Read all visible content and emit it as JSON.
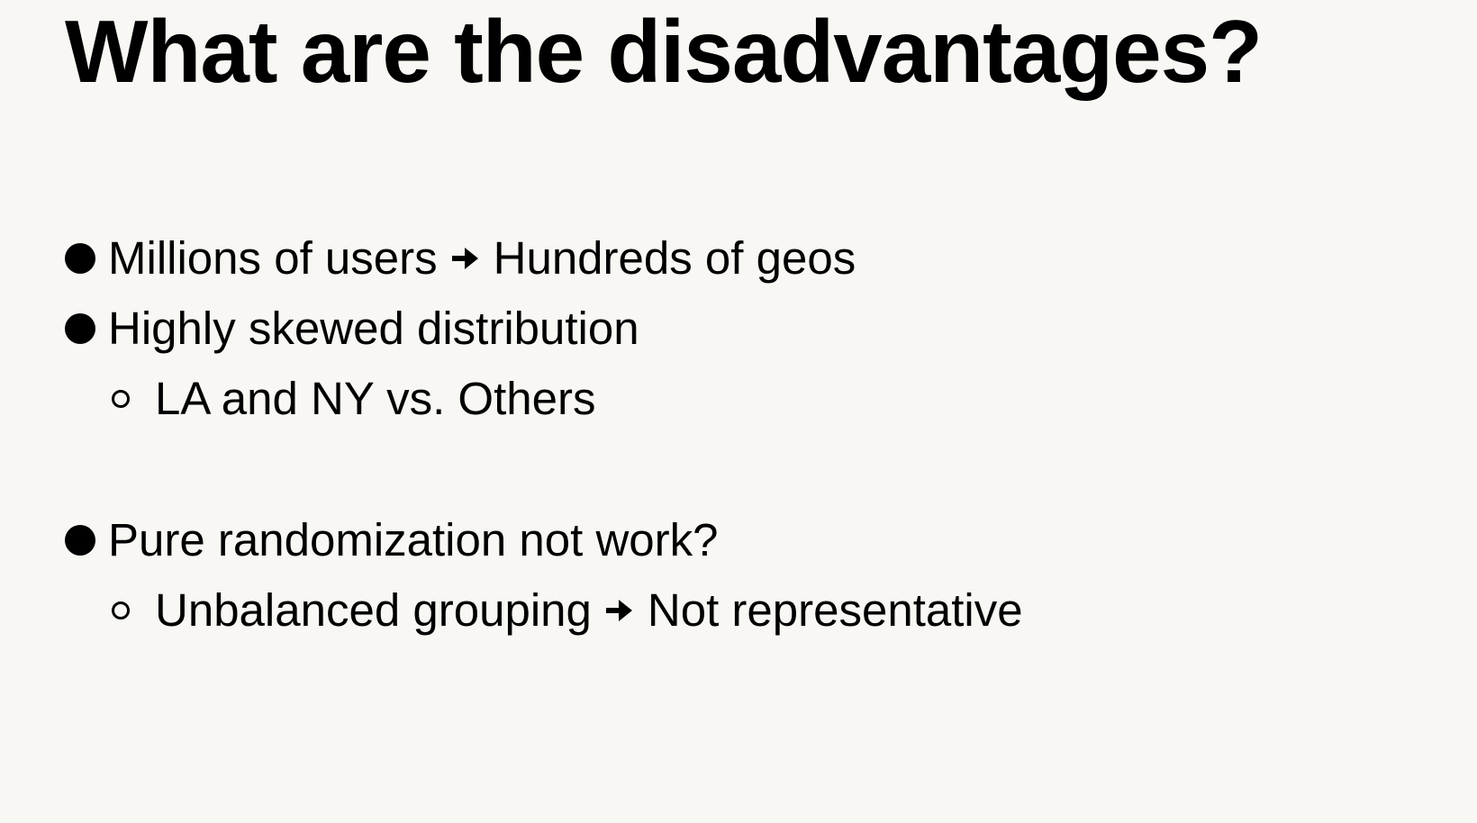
{
  "slide": {
    "title": "What are the disadvantages?",
    "items": [
      {
        "before_arrow": "Millions of users",
        "after_arrow": "Hundreds of geos"
      },
      {
        "text": "Highly skewed distribution",
        "sub": "LA and NY vs. Others"
      },
      {
        "text": "Pure randomization not work?",
        "sub_before_arrow": "Unbalanced grouping",
        "sub_after_arrow": "Not representative"
      }
    ]
  },
  "colors": {
    "background": "#f8f7f3",
    "text": "#000000"
  },
  "icons": {
    "bullet_level1": "filled-circle-bullet-icon",
    "bullet_level2": "hollow-circle-bullet-icon",
    "arrow": "right-arrow-icon"
  }
}
